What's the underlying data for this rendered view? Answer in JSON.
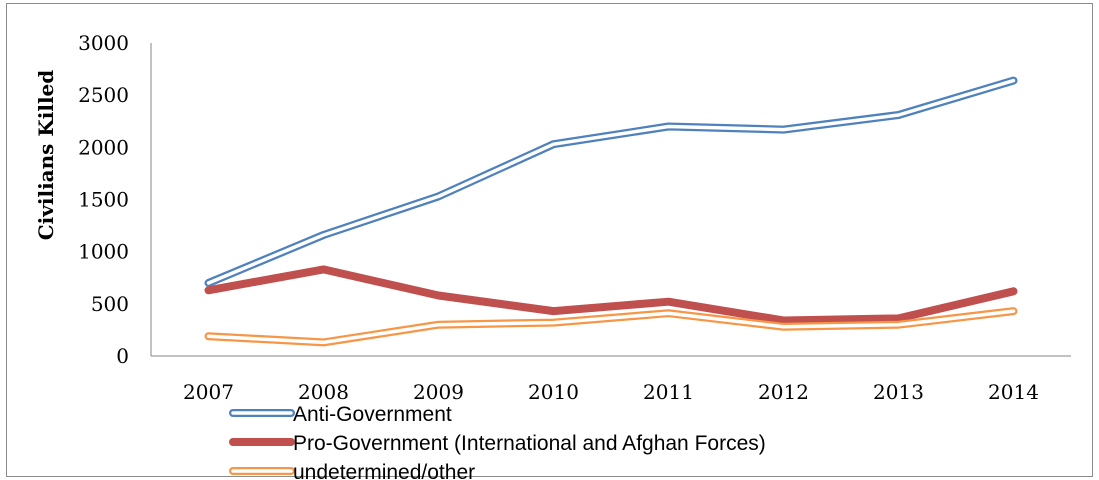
{
  "chart_data": {
    "type": "line",
    "title": "",
    "xlabel": "",
    "ylabel": "Civilians Killed",
    "ylim": [
      0,
      3000
    ],
    "y_ticks": [
      "0",
      "500",
      "1000",
      "1500",
      "2000",
      "2500",
      "3000"
    ],
    "x": [
      "2007",
      "2008",
      "2009",
      "2010",
      "2011",
      "2012",
      "2013",
      "2014"
    ],
    "grid": false,
    "legend_position": "bottom-left",
    "series": [
      {
        "name": "Anti-Government",
        "values": [
          700,
          1160,
          1530,
          2030,
          2200,
          2170,
          2310,
          2640
        ],
        "color": "#4f81bd",
        "style": "double"
      },
      {
        "name": "Pro-Government (International and Afghan Forces)",
        "values": [
          630,
          830,
          580,
          430,
          520,
          340,
          360,
          620
        ],
        "color": "#c0504d",
        "style": "solid-thick"
      },
      {
        "name": "undetermined/other",
        "values": [
          190,
          130,
          300,
          320,
          410,
          280,
          300,
          430
        ],
        "color": "#f79646",
        "style": "double"
      }
    ]
  }
}
